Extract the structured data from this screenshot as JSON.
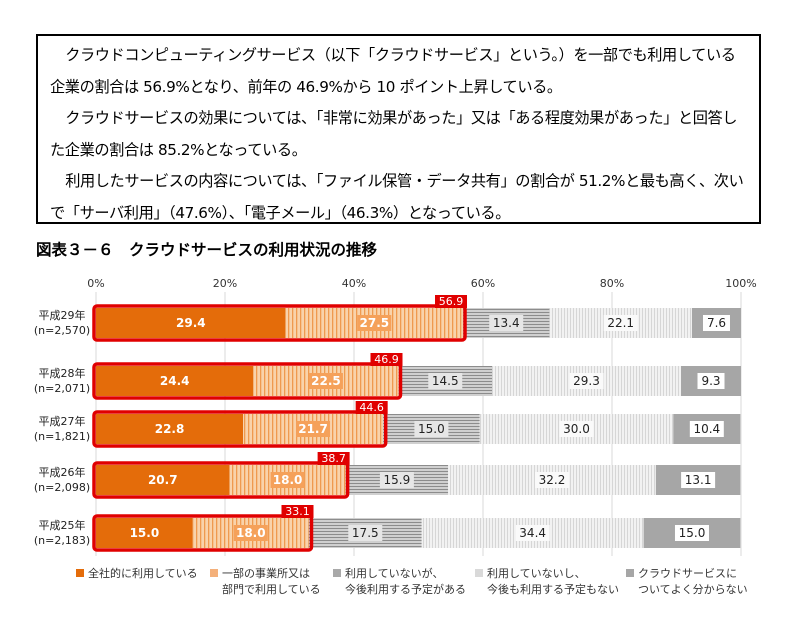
{
  "summary": {
    "p1": "クラウドコンピューティングサービス（以下「クラウドサービス」という。）を一部でも利用している企業の割合は 56.9%となり、前年の 46.9%から 10 ポイント上昇している。",
    "p2": "クラウドサービスの効果については、「非常に効果があった」又は「ある程度効果があった」と回答した企業の割合は 85.2%となっている。",
    "p3": "利用したサービスの内容については、「ファイル保管・データ共有」の割合が 51.2%と最も高く、次いで「サーバ利用」（47.6%）、「電子メール」（46.3%）となっている。"
  },
  "figure_title": "図表３－６　クラウドサービスの利用状況の推移",
  "chart_data": {
    "type": "bar",
    "orientation": "horizontal-stacked-100",
    "xlim": [
      0,
      100
    ],
    "x_ticks": [
      "0%",
      "20%",
      "40%",
      "60%",
      "80%",
      "100%"
    ],
    "grid": true,
    "legend_position": "bottom",
    "categories": [
      {
        "year": "平成29年",
        "n": "(n=2,570)"
      },
      {
        "year": "平成28年",
        "n": "(n=2,071)"
      },
      {
        "year": "平成27年",
        "n": "(n=1,821)"
      },
      {
        "year": "平成26年",
        "n": "(n=2,098)"
      },
      {
        "year": "平成25年",
        "n": "(n=2,183)"
      }
    ],
    "series": [
      {
        "name": "全社的に利用している",
        "name_lines": [
          "全社的に利用している"
        ],
        "color": "#E46C0A",
        "values": [
          29.4,
          24.4,
          22.8,
          20.7,
          15.0
        ]
      },
      {
        "name": "一部の事業所又は部門で利用している",
        "name_lines": [
          "一部の事業所又は",
          "部門で利用している"
        ],
        "color": "#F8C99A",
        "values": [
          27.5,
          22.5,
          21.7,
          18.0,
          18.0
        ]
      },
      {
        "name": "利用していないが、今後利用する予定がある",
        "name_lines": [
          "利用していないが、",
          "今後利用する予定がある"
        ],
        "color": "#BDBDBD",
        "values": [
          13.4,
          14.5,
          15.0,
          15.9,
          17.5
        ]
      },
      {
        "name": "利用していないし、今後も利用する予定もない",
        "name_lines": [
          "利用していないし、",
          "今後も利用する予定もない"
        ],
        "color": "#E8E8E8",
        "values": [
          22.1,
          29.3,
          30.0,
          32.2,
          34.4
        ]
      },
      {
        "name": "クラウドサービスについてよく分からない",
        "name_lines": [
          "クラウドサービスに",
          "ついてよく分からない"
        ],
        "color": "#A6A6A6",
        "values": [
          7.6,
          9.3,
          10.4,
          13.1,
          15.0
        ]
      }
    ],
    "usage_totals": {
      "labels": [
        "56.9",
        "46.9",
        "44.6",
        "38.7",
        "33.1"
      ],
      "values": [
        56.9,
        46.9,
        44.6,
        38.7,
        33.1
      ],
      "highlight_color": "#E00000"
    }
  }
}
